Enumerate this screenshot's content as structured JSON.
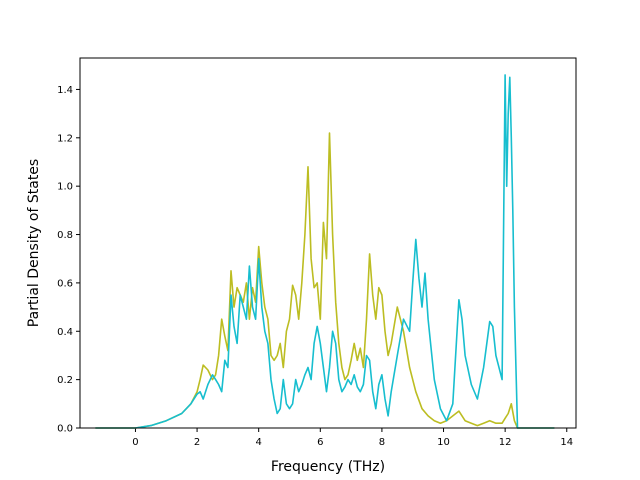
{
  "chart_data": {
    "type": "line",
    "title": "",
    "xlabel": "Frequency (THz)",
    "ylabel": "Partial Density of States",
    "xlim": [
      -1.8,
      14.3
    ],
    "ylim": [
      0.0,
      1.53
    ],
    "xticks": [
      0,
      2,
      4,
      6,
      8,
      10,
      12,
      14
    ],
    "yticks": [
      0.0,
      0.2,
      0.4,
      0.6,
      0.8,
      1.0,
      1.2,
      1.4
    ],
    "grid": false,
    "legend": "none",
    "series": [
      {
        "color": "#bcbd22",
        "x": [
          -1.3,
          0.0,
          0.5,
          1.0,
          1.5,
          1.8,
          2.0,
          2.1,
          2.2,
          2.35,
          2.5,
          2.6,
          2.7,
          2.8,
          2.9,
          3.0,
          3.1,
          3.2,
          3.3,
          3.4,
          3.5,
          3.6,
          3.7,
          3.8,
          3.9,
          4.0,
          4.1,
          4.2,
          4.3,
          4.4,
          4.5,
          4.6,
          4.7,
          4.8,
          4.9,
          5.0,
          5.1,
          5.2,
          5.3,
          5.4,
          5.5,
          5.6,
          5.7,
          5.8,
          5.9,
          6.0,
          6.1,
          6.2,
          6.3,
          6.4,
          6.5,
          6.6,
          6.7,
          6.8,
          6.9,
          7.0,
          7.1,
          7.2,
          7.3,
          7.4,
          7.5,
          7.6,
          7.7,
          7.8,
          7.9,
          8.0,
          8.1,
          8.2,
          8.3,
          8.5,
          8.7,
          8.9,
          9.1,
          9.3,
          9.5,
          9.7,
          9.9,
          10.1,
          10.3,
          10.5,
          10.7,
          10.9,
          11.1,
          11.3,
          11.5,
          11.7,
          11.9,
          12.0,
          12.1,
          12.2,
          12.3,
          12.4,
          12.6,
          13.0,
          13.6
        ],
        "y": [
          0.0,
          0.0,
          0.01,
          0.03,
          0.06,
          0.1,
          0.15,
          0.2,
          0.26,
          0.24,
          0.2,
          0.22,
          0.3,
          0.45,
          0.38,
          0.32,
          0.65,
          0.5,
          0.58,
          0.55,
          0.52,
          0.6,
          0.45,
          0.58,
          0.52,
          0.75,
          0.6,
          0.5,
          0.45,
          0.3,
          0.28,
          0.3,
          0.35,
          0.25,
          0.4,
          0.45,
          0.59,
          0.55,
          0.45,
          0.6,
          0.8,
          1.08,
          0.7,
          0.58,
          0.6,
          0.45,
          0.85,
          0.7,
          1.22,
          0.8,
          0.52,
          0.35,
          0.25,
          0.2,
          0.22,
          0.28,
          0.35,
          0.28,
          0.33,
          0.25,
          0.45,
          0.72,
          0.55,
          0.45,
          0.58,
          0.55,
          0.4,
          0.3,
          0.35,
          0.5,
          0.4,
          0.25,
          0.15,
          0.08,
          0.05,
          0.03,
          0.02,
          0.03,
          0.05,
          0.07,
          0.03,
          0.02,
          0.01,
          0.02,
          0.03,
          0.02,
          0.02,
          0.04,
          0.06,
          0.1,
          0.03,
          0.0,
          0.0,
          0.0,
          0.0
        ]
      },
      {
        "color": "#17becf",
        "x": [
          -1.3,
          0.0,
          0.5,
          1.0,
          1.5,
          1.8,
          2.0,
          2.1,
          2.2,
          2.35,
          2.5,
          2.6,
          2.7,
          2.8,
          2.9,
          3.0,
          3.1,
          3.2,
          3.3,
          3.4,
          3.5,
          3.6,
          3.7,
          3.8,
          3.9,
          4.0,
          4.1,
          4.2,
          4.3,
          4.4,
          4.5,
          4.6,
          4.7,
          4.8,
          4.9,
          5.0,
          5.1,
          5.2,
          5.3,
          5.4,
          5.5,
          5.6,
          5.7,
          5.8,
          5.9,
          6.0,
          6.1,
          6.2,
          6.3,
          6.4,
          6.5,
          6.6,
          6.7,
          6.8,
          6.9,
          7.0,
          7.1,
          7.2,
          7.3,
          7.4,
          7.5,
          7.6,
          7.7,
          7.8,
          7.9,
          8.0,
          8.1,
          8.2,
          8.3,
          8.5,
          8.7,
          8.9,
          9.0,
          9.1,
          9.2,
          9.3,
          9.4,
          9.5,
          9.7,
          9.9,
          10.1,
          10.3,
          10.5,
          10.6,
          10.7,
          10.9,
          11.1,
          11.3,
          11.5,
          11.6,
          11.7,
          11.9,
          12.0,
          12.05,
          12.1,
          12.15,
          12.2,
          12.25,
          12.3,
          12.4,
          12.6,
          13.0,
          13.6
        ],
        "y": [
          0.0,
          0.0,
          0.01,
          0.03,
          0.06,
          0.1,
          0.14,
          0.15,
          0.12,
          0.18,
          0.22,
          0.2,
          0.18,
          0.15,
          0.28,
          0.25,
          0.55,
          0.42,
          0.35,
          0.55,
          0.5,
          0.45,
          0.67,
          0.5,
          0.45,
          0.7,
          0.5,
          0.4,
          0.35,
          0.2,
          0.12,
          0.06,
          0.08,
          0.2,
          0.1,
          0.08,
          0.1,
          0.2,
          0.15,
          0.18,
          0.22,
          0.25,
          0.2,
          0.35,
          0.42,
          0.35,
          0.25,
          0.15,
          0.25,
          0.4,
          0.35,
          0.2,
          0.15,
          0.17,
          0.2,
          0.18,
          0.22,
          0.17,
          0.15,
          0.18,
          0.3,
          0.28,
          0.15,
          0.08,
          0.18,
          0.22,
          0.12,
          0.05,
          0.15,
          0.3,
          0.45,
          0.4,
          0.6,
          0.78,
          0.62,
          0.5,
          0.64,
          0.45,
          0.2,
          0.08,
          0.03,
          0.1,
          0.53,
          0.45,
          0.3,
          0.18,
          0.12,
          0.25,
          0.44,
          0.42,
          0.3,
          0.2,
          1.46,
          1.0,
          1.3,
          1.45,
          1.2,
          0.9,
          0.5,
          0.0,
          0.0,
          0.0,
          0.0
        ]
      }
    ]
  }
}
